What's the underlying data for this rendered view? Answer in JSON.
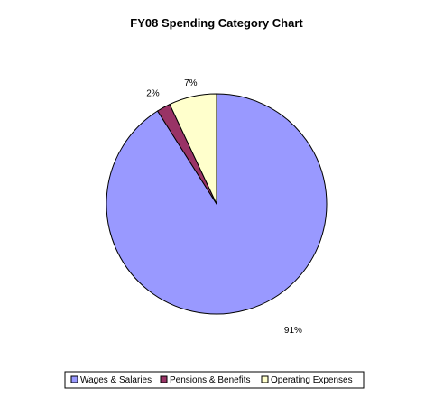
{
  "chart_data": {
    "type": "pie",
    "title": "FY08 Spending Category Chart",
    "categories": [
      "Wages & Salaries",
      "Pensions & Benefits",
      "Operating Expenses"
    ],
    "values": [
      91,
      2,
      7
    ],
    "labels": [
      "91%",
      "2%",
      "7%"
    ],
    "colors": [
      "#9999ff",
      "#993366",
      "#ffffcc"
    ],
    "legend_position": "bottom"
  }
}
